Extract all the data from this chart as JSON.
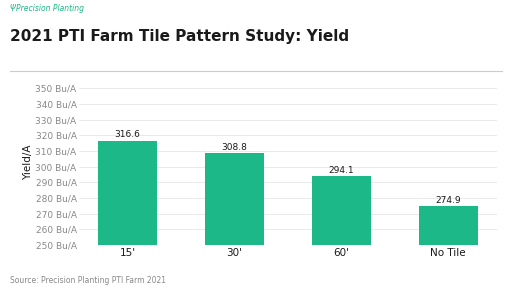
{
  "title": "2021 PTI Farm Tile Pattern Study: Yield",
  "logo_text": "ΨPrecision Planting",
  "source_text": "Source: Precision Planting PTI Farm 2021",
  "categories": [
    "15'",
    "30'",
    "60'",
    "No Tile"
  ],
  "values": [
    316.6,
    308.8,
    294.1,
    274.9
  ],
  "bar_color": "#1DB887",
  "ylabel": "Yield/A",
  "ylim": [
    250,
    355
  ],
  "yticks": [
    250,
    260,
    270,
    280,
    290,
    300,
    310,
    320,
    330,
    340,
    350
  ],
  "ytick_labels": [
    "250 Bu/A",
    "260 Bu/A",
    "270 Bu/A",
    "280 Bu/A",
    "290 Bu/A",
    "300 Bu/A",
    "310 Bu/A",
    "320 Bu/A",
    "330 Bu/A",
    "340 Bu/A",
    "350 Bu/A"
  ],
  "background_color": "#ffffff",
  "title_fontsize": 11,
  "label_fontsize": 6.5,
  "bar_label_fontsize": 6.5,
  "ylabel_fontsize": 7.5,
  "source_fontsize": 5.5,
  "logo_fontsize": 5.5,
  "grid_color": "#e0e0e0",
  "tick_label_color": "#888888",
  "title_color": "#1a1a1a",
  "logo_color": "#1DB887",
  "bar_width": 0.55
}
